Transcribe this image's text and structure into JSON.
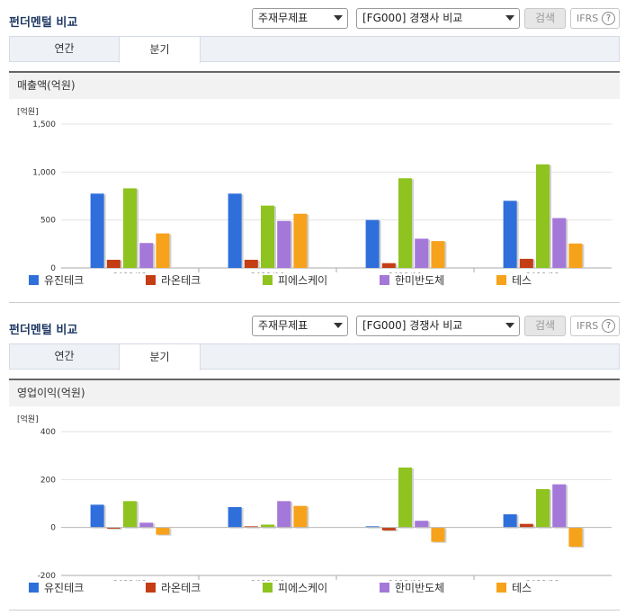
{
  "sections": [
    {
      "title": "펀더멘털 비교",
      "select1": "주재무제표",
      "select2": "[FG000] 경쟁사 비교",
      "search_label": "검색",
      "ifrs_label": "IFRS",
      "help_label": "?",
      "tabs": [
        {
          "label": "연간"
        },
        {
          "label": "분기"
        }
      ],
      "subtitle": "매출액(억원)"
    },
    {
      "title": "펀더멘털 비교",
      "select1": "주재무제표",
      "select2": "[FG000] 경쟁사 비교",
      "search_label": "검색",
      "ifrs_label": "IFRS",
      "help_label": "?",
      "tabs": [
        {
          "label": "연간"
        },
        {
          "label": "분기"
        }
      ],
      "subtitle": "영업이익(억원)"
    }
  ],
  "legend": [
    {
      "name": "유진테크",
      "color": "#2f6fdc"
    },
    {
      "name": "라온테크",
      "color": "#c43d14"
    },
    {
      "name": "피에스케이",
      "color": "#8fc31f"
    },
    {
      "name": "한미반도체",
      "color": "#a478d8"
    },
    {
      "name": "테스",
      "color": "#f7a21b"
    }
  ],
  "chart_data": [
    {
      "type": "bar",
      "unit": "[억원]",
      "categories": [
        "2023/03",
        "2023/06",
        "2023/09",
        "2023/12"
      ],
      "ylim": [
        0,
        1500
      ],
      "yticks": [
        "0",
        "500",
        "1,000",
        "1,500"
      ],
      "ytick_values": [
        0,
        500,
        1000,
        1500
      ],
      "series": [
        {
          "name": "유진테크",
          "values": [
            775,
            775,
            500,
            700
          ]
        },
        {
          "name": "라온테크",
          "values": [
            85,
            85,
            50,
            95
          ]
        },
        {
          "name": "피에스케이",
          "values": [
            830,
            650,
            935,
            1080
          ]
        },
        {
          "name": "한미반도체",
          "values": [
            260,
            490,
            305,
            520
          ]
        },
        {
          "name": "테스",
          "values": [
            360,
            565,
            280,
            255
          ]
        }
      ]
    },
    {
      "type": "bar",
      "unit": "[억원]",
      "categories": [
        "2023/03",
        "2023/06",
        "2023/09",
        "2023/12"
      ],
      "ylim": [
        -200,
        400
      ],
      "yticks": [
        "-200",
        "0",
        "200",
        "400"
      ],
      "ytick_values": [
        -200,
        0,
        200,
        400
      ],
      "series": [
        {
          "name": "유진테크",
          "values": [
            95,
            85,
            5,
            55
          ]
        },
        {
          "name": "라온테크",
          "values": [
            -5,
            5,
            -12,
            15
          ]
        },
        {
          "name": "피에스케이",
          "values": [
            110,
            12,
            250,
            160
          ]
        },
        {
          "name": "한미반도체",
          "values": [
            20,
            110,
            28,
            180
          ]
        },
        {
          "name": "테스",
          "values": [
            -30,
            90,
            -60,
            -80
          ]
        }
      ]
    }
  ]
}
